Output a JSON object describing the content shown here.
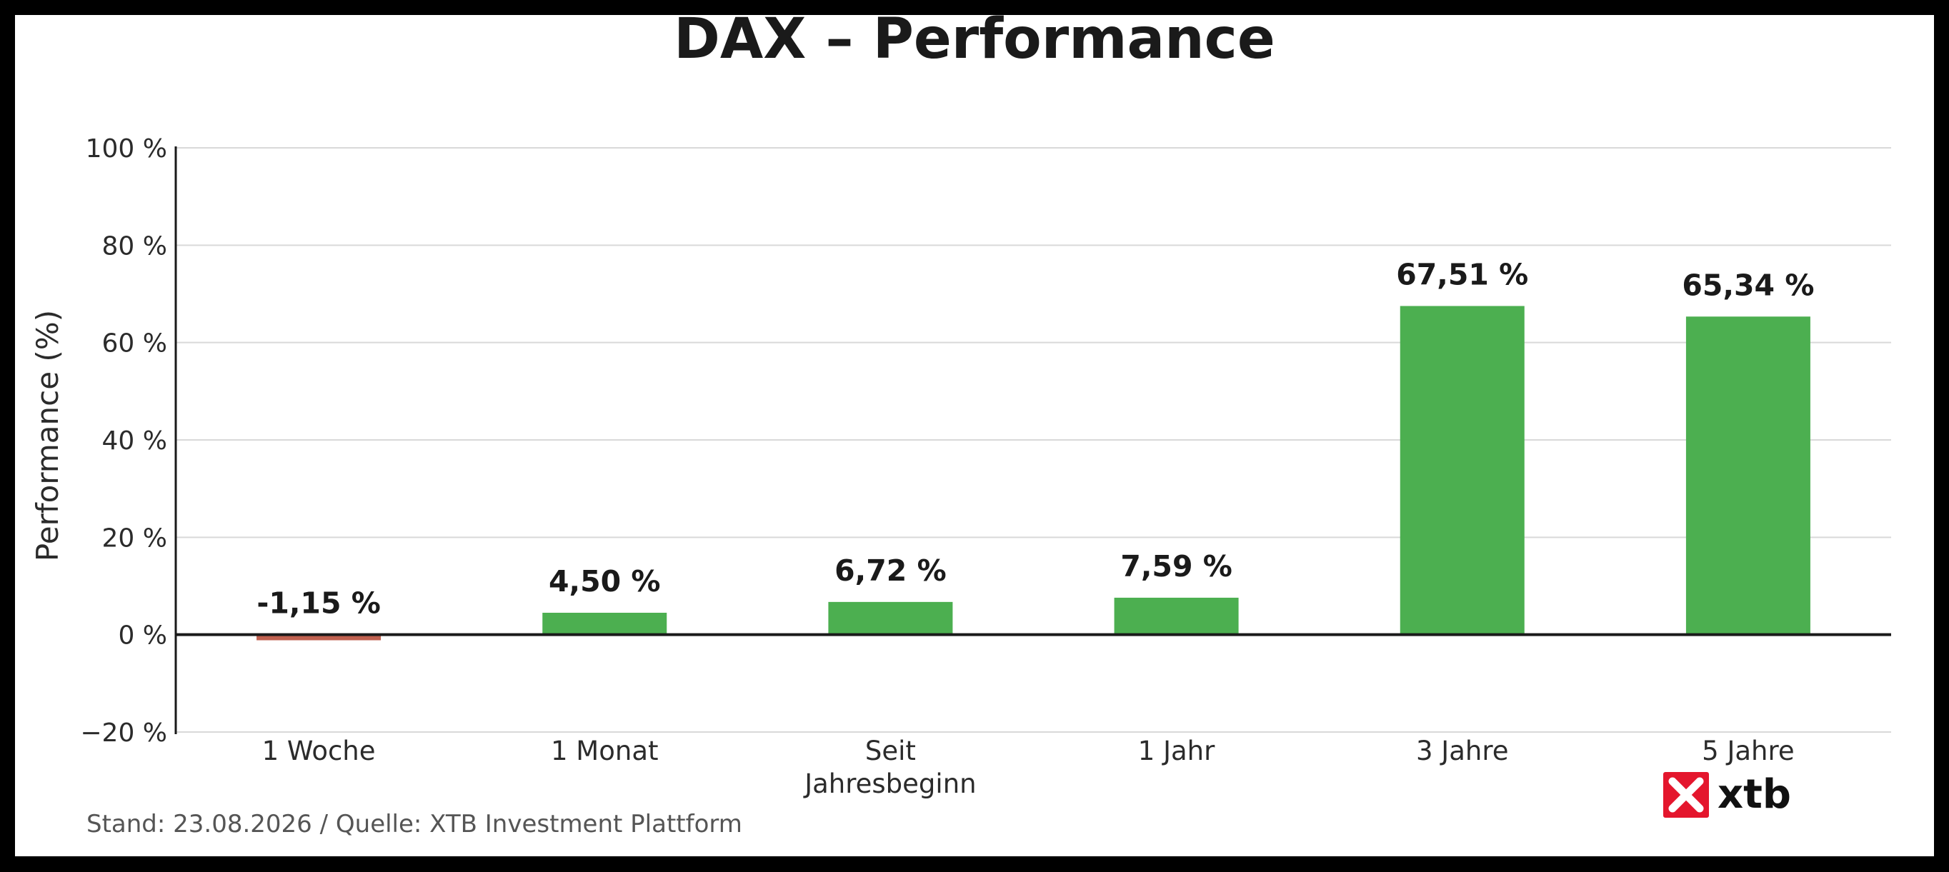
{
  "chart_data": {
    "type": "bar",
    "title": "DAX – Performance",
    "ylabel": "Performance (%)",
    "xlabel": "",
    "categories": [
      [
        "1 Woche"
      ],
      [
        "1 Monat"
      ],
      [
        "Seit",
        "Jahresbeginn"
      ],
      [
        "1 Jahr"
      ],
      [
        "3 Jahre"
      ],
      [
        "5 Jahre"
      ]
    ],
    "values": [
      -1.15,
      4.5,
      6.72,
      7.59,
      67.51,
      65.34
    ],
    "data_labels": [
      "-1,15 %",
      "4,50 %",
      "6,72 %",
      "7,59 %",
      "67,51 %",
      "65,34 %"
    ],
    "ylim": [
      -20,
      100
    ],
    "yticks": [
      100,
      80,
      60,
      40,
      20,
      0,
      -20
    ],
    "ytick_labels": [
      "100 %",
      "80 %",
      "60 %",
      "40 %",
      "20 %",
      "0 %",
      "−20 %"
    ],
    "grid": true,
    "colors": {
      "positive": "#4caf50",
      "negative": "#c0604f",
      "grid": "#d9d9d9",
      "axis": "#1a1a1a"
    }
  },
  "footer": {
    "source": "Stand: 23.08.2026 / Quelle: XTB Investment Plattform"
  },
  "logo": {
    "text": "xtb",
    "color": "#e4162d",
    "icon": "xtb-x-icon"
  }
}
